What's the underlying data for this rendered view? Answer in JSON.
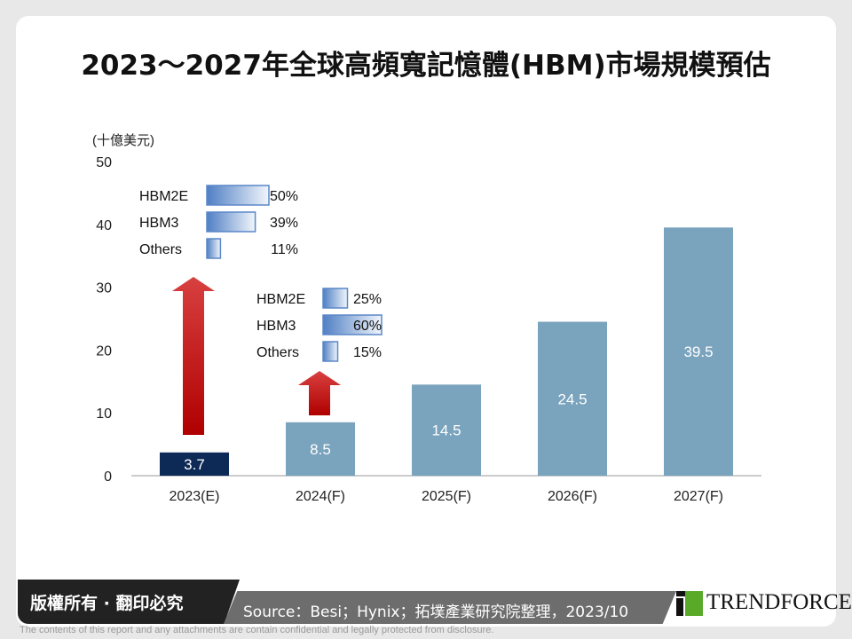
{
  "title": "2023～2027年全球高頻寬記憶體(HBM)市場規模預估",
  "chart_data": {
    "type": "bar",
    "ylabel": "(十億美元)",
    "ylim": [
      0,
      50
    ],
    "yticks": [
      0,
      10,
      20,
      30,
      40,
      50
    ],
    "categories": [
      "2023(E)",
      "2024(F)",
      "2025(F)",
      "2026(F)",
      "2027(F)"
    ],
    "values": [
      3.7,
      8.5,
      14.5,
      24.5,
      39.5
    ],
    "data_labels": [
      "3.7",
      "8.5",
      "14.5",
      "24.5",
      "39.5"
    ],
    "colors": [
      "#0d2956",
      "#7aa3bd",
      "#7aa3bd",
      "#7aa3bd",
      "#7aa3bd"
    ],
    "grid": false,
    "insets": [
      {
        "anchor": "2023(E)",
        "items": [
          {
            "label": "HBM2E",
            "value": 50,
            "text": "50%"
          },
          {
            "label": "HBM3",
            "value": 39,
            "text": "39%"
          },
          {
            "label": "Others",
            "value": 11,
            "text": "11%"
          }
        ]
      },
      {
        "anchor": "2024(F)",
        "items": [
          {
            "label": "HBM2E",
            "value": 25,
            "text": "25%"
          },
          {
            "label": "HBM3",
            "value": 60,
            "text": "60%"
          },
          {
            "label": "Others",
            "value": 15,
            "text": "15%"
          }
        ]
      }
    ],
    "arrow_color": "#c00000"
  },
  "footer": {
    "copyright": "版權所有 · 翻印必究",
    "source": "Source：Besi；Hynix；拓墣產業研究院整理，2023/10",
    "logo": "TRENDFORCE",
    "disclaimer": "The contents of this report and any attachments are contain confidential and legally protected from disclosure."
  }
}
